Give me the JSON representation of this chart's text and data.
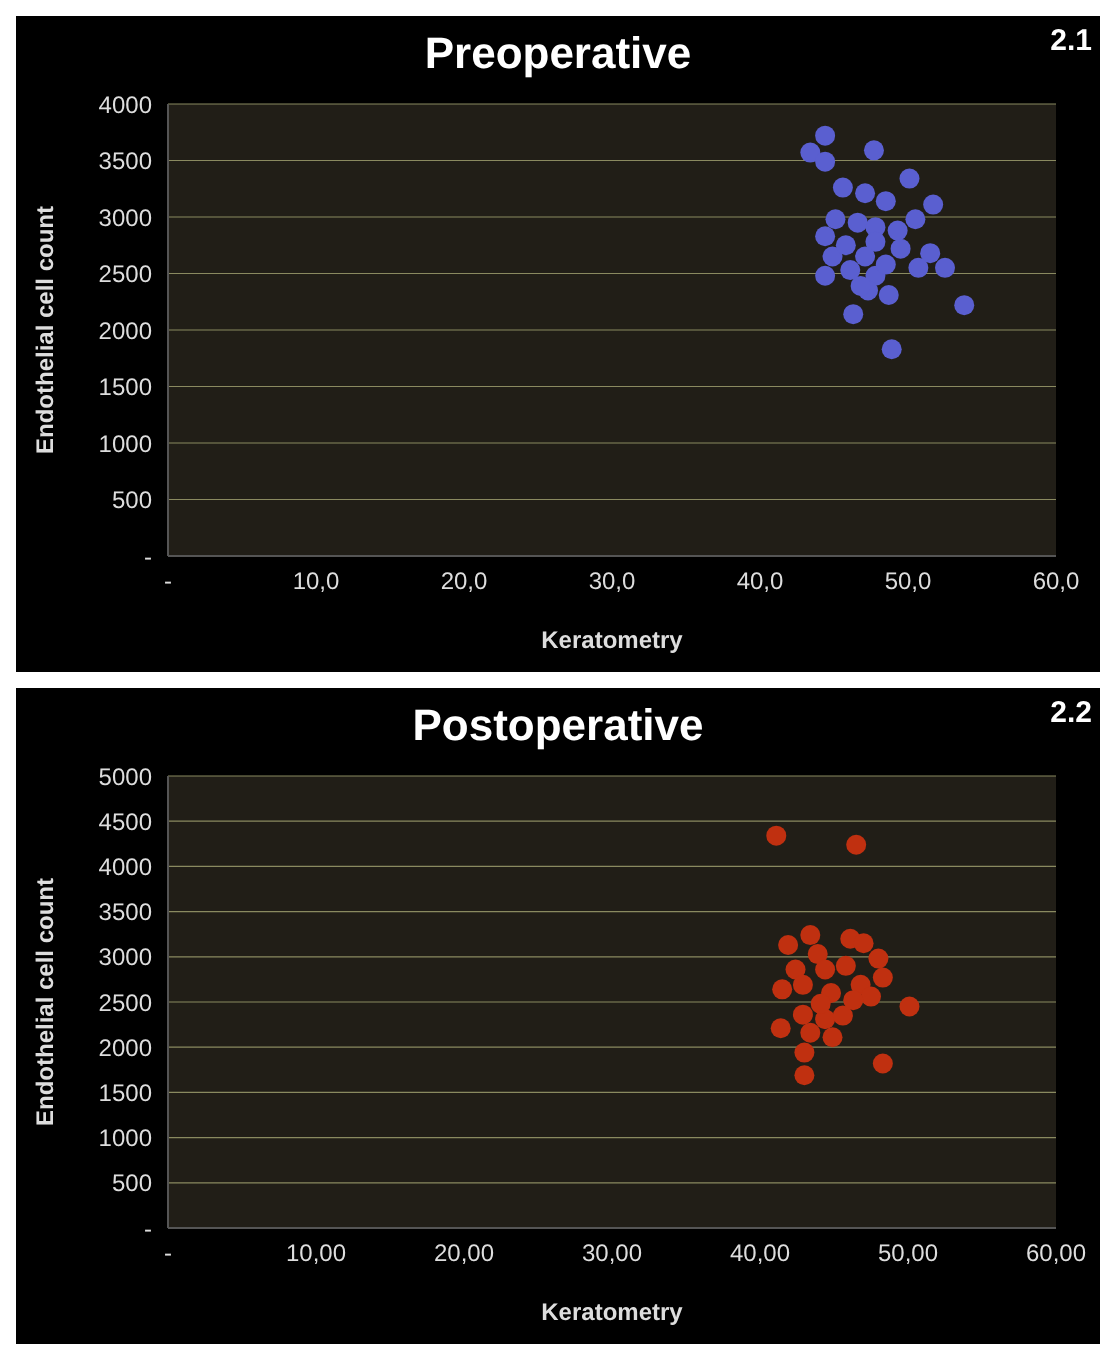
{
  "chart_data": [
    {
      "type": "scatter",
      "title": "Preoperative",
      "xlabel": "Keratometry",
      "ylabel": "Endothelial cell count",
      "annotations": [
        "2.1"
      ],
      "grid": "y",
      "marker": "circle",
      "xlim": [
        0,
        60
      ],
      "xticks": [
        {
          "value": 0,
          "label": "-"
        },
        {
          "value": 10,
          "label": "10,0"
        },
        {
          "value": 20,
          "label": "20,0"
        },
        {
          "value": 30,
          "label": "30,0"
        },
        {
          "value": 40,
          "label": "40,0"
        },
        {
          "value": 50,
          "label": "50,0"
        },
        {
          "value": 60,
          "label": "60,0"
        }
      ],
      "ylim": [
        0,
        4000
      ],
      "yticks": [
        {
          "value": 0,
          "label": "-"
        },
        500,
        1000,
        1500,
        2000,
        2500,
        3000,
        3500,
        4000
      ],
      "series": [
        {
          "color": "#5a5fd0",
          "x": [
            44.4,
            43.4,
            44.4,
            47.7,
            50.1,
            45.6,
            47.1,
            48.5,
            51.7,
            45.1,
            44.4,
            46.6,
            47.8,
            49.3,
            50.5,
            44.9,
            45.8,
            47.8,
            49.5,
            51.5,
            44.4,
            46.1,
            47.8,
            50.7,
            52.5,
            47.3,
            48.7,
            53.8,
            46.3,
            48.9,
            47.1,
            48.5,
            46.8
          ],
          "values": [
            3720,
            3570,
            3490,
            3590,
            3340,
            3260,
            3210,
            3140,
            3110,
            2980,
            2830,
            2950,
            2910,
            2880,
            2980,
            2650,
            2750,
            2780,
            2720,
            2680,
            2480,
            2530,
            2480,
            2550,
            2550,
            2350,
            2310,
            2220,
            2140,
            1830,
            2650,
            2580,
            2390
          ]
        }
      ]
    },
    {
      "type": "scatter",
      "title": "Postoperative",
      "xlabel": "Keratometry",
      "ylabel": "Endothelial cell count",
      "annotations": [
        "2.2"
      ],
      "grid": "y",
      "marker": "circle",
      "xlim": [
        0,
        60
      ],
      "xticks": [
        {
          "value": 0,
          "label": "-"
        },
        {
          "value": 10,
          "label": "10,00"
        },
        {
          "value": 20,
          "label": "20,00"
        },
        {
          "value": 30,
          "label": "30,00"
        },
        {
          "value": 40,
          "label": "40,00"
        },
        {
          "value": 50,
          "label": "50,00"
        },
        {
          "value": 60,
          "label": "60,00"
        }
      ],
      "ylim": [
        0,
        5000
      ],
      "yticks": [
        {
          "value": 0,
          "label": "-"
        },
        500,
        1000,
        1500,
        2000,
        2500,
        3000,
        3500,
        4000,
        4500,
        5000
      ],
      "series": [
        {
          "color": "#c03010",
          "x": [
            41.1,
            46.5,
            43.4,
            41.9,
            46.1,
            47.0,
            48.0,
            43.9,
            42.4,
            44.4,
            45.8,
            48.3,
            41.5,
            42.9,
            44.8,
            46.8,
            47.5,
            50.1,
            42.9,
            44.4,
            45.6,
            41.4,
            43.4,
            44.9,
            43.0,
            48.3,
            43.0,
            44.1,
            46.3
          ],
          "values": [
            4340,
            4240,
            3240,
            3130,
            3200,
            3150,
            2980,
            3030,
            2860,
            2860,
            2900,
            2770,
            2640,
            2690,
            2600,
            2690,
            2560,
            2450,
            2360,
            2310,
            2350,
            2210,
            2160,
            2110,
            1940,
            1820,
            1690,
            2480,
            2520
          ]
        }
      ]
    }
  ]
}
